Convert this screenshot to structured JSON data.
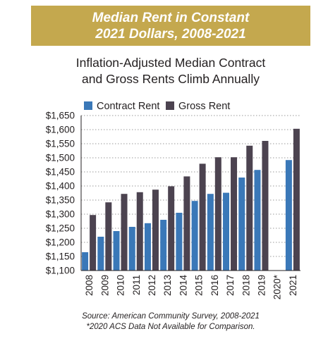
{
  "header": {
    "banner_line1": "Median Rent in Constant",
    "banner_line2": "2021 Dollars, 2008-2021",
    "subtitle_line1": "Inflation-Adjusted Median Contract",
    "subtitle_line2": "and Gross Rents Climb Annually"
  },
  "footer": {
    "source": "Source: American Community Survey, 2008-2021",
    "note": "*2020 ACS Data Not Available for Comparison."
  },
  "colors": {
    "banner": "#c4a84e",
    "contract": "#3a78b8",
    "gross": "#4c4350",
    "grid": "#999999",
    "text": "#231f20"
  },
  "chart_data": {
    "type": "bar",
    "categories": [
      "2008",
      "2009",
      "2010",
      "2011",
      "2012",
      "2013",
      "2014",
      "2015",
      "2016",
      "2017",
      "2018",
      "2019",
      "2020*",
      "2021"
    ],
    "series": [
      {
        "name": "Contract Rent",
        "values": [
          1165,
          1220,
          1240,
          1255,
          1268,
          1280,
          1305,
          1347,
          1372,
          1376,
          1430,
          1457,
          null,
          1492
        ]
      },
      {
        "name": "Gross Rent",
        "values": [
          1297,
          1342,
          1372,
          1378,
          1387,
          1399,
          1434,
          1479,
          1502,
          1502,
          1543,
          1560,
          null,
          1603
        ]
      }
    ],
    "ylim": [
      1100,
      1650
    ],
    "yticks": [
      "$1,100",
      "$1,150",
      "$1,200",
      "$1,250",
      "$1,300",
      "$1,350",
      "$1,400",
      "$1,450",
      "$1,500",
      "$1,550",
      "$1,600",
      "$1,650"
    ],
    "grid": true,
    "legend_position": "top-left"
  }
}
